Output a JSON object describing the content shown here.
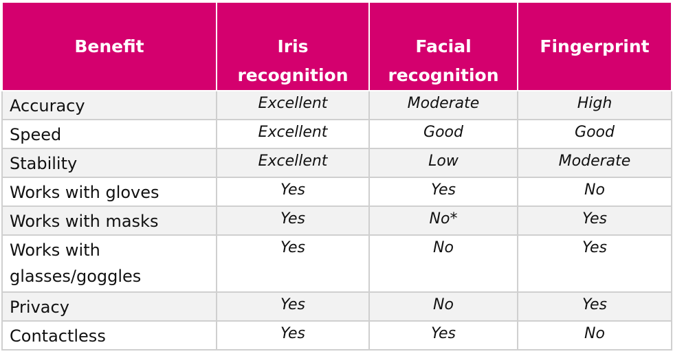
{
  "table": {
    "columns": [
      "Benefit",
      "Iris recognition",
      "Facial recognition",
      "Fingerprint"
    ],
    "header": {
      "benefit": "Benefit",
      "iris_line1": "Iris",
      "iris_line2": "recognition",
      "facial_line1": "Facial",
      "facial_line2": "recognition",
      "fingerprint": "Fingerprint"
    },
    "rows": [
      {
        "benefit": "Accuracy",
        "iris": "Excellent",
        "facial": "Moderate",
        "fingerprint": "High"
      },
      {
        "benefit": "Speed",
        "iris": "Excellent",
        "facial": "Good",
        "fingerprint": "Good"
      },
      {
        "benefit": "Stability",
        "iris": "Excellent",
        "facial": "Low",
        "fingerprint": "Moderate"
      },
      {
        "benefit": "Works with gloves",
        "iris": "Yes",
        "facial": "Yes",
        "fingerprint": "No"
      },
      {
        "benefit": "Works with masks",
        "iris": "Yes",
        "facial": "No*",
        "fingerprint": "Yes"
      },
      {
        "benefit_line1": "Works with",
        "benefit_line2": "glasses/goggles",
        "iris": "Yes",
        "facial": "No",
        "fingerprint": "Yes"
      },
      {
        "benefit": "Privacy",
        "iris": "Yes",
        "facial": "No",
        "fingerprint": "Yes"
      },
      {
        "benefit": "Contactless",
        "iris": "Yes",
        "facial": "Yes",
        "fingerprint": "No"
      }
    ]
  },
  "colors": {
    "header_background": "#d4006e",
    "header_text": "#ffffff",
    "row_shade": "#f2f2f2",
    "grid": "#cfcfcf"
  }
}
